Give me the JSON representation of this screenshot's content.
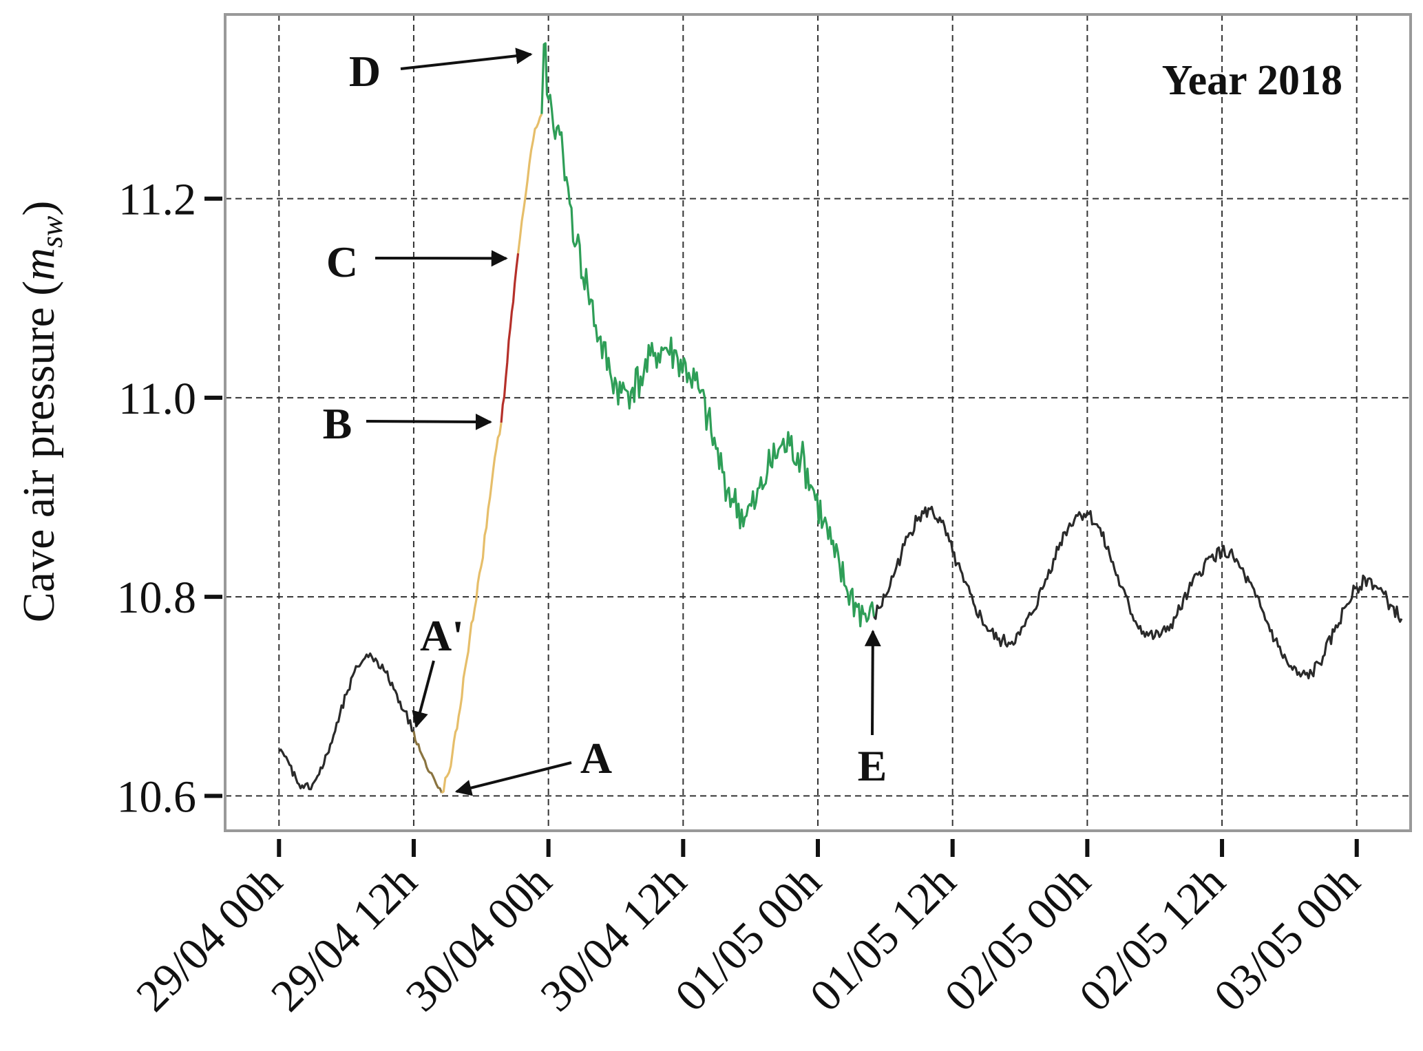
{
  "chart_data": {
    "type": "line",
    "ylabel_main": "Cave air pressure (",
    "ylabel_var": "m",
    "ylabel_sub": "sw",
    "ylabel_close": ")",
    "ylim": [
      10.565,
      11.385
    ],
    "y_ticks": [
      {
        "value": 10.6,
        "label": "10.6"
      },
      {
        "value": 10.8,
        "label": "10.8"
      },
      {
        "value": 11.0,
        "label": "11.0"
      },
      {
        "value": 11.2,
        "label": "11.2"
      }
    ],
    "xlim_hours": [
      -4.8,
      100.8
    ],
    "x_ticks": [
      {
        "hour": 0,
        "label": "29/04 00h"
      },
      {
        "hour": 12,
        "label": "29/04 12h"
      },
      {
        "hour": 24,
        "label": "30/04 00h"
      },
      {
        "hour": 36,
        "label": "30/04 12h"
      },
      {
        "hour": 48,
        "label": "01/05 00h"
      },
      {
        "hour": 60,
        "label": "01/05 12h"
      },
      {
        "hour": 72,
        "label": "02/05 00h"
      },
      {
        "hour": 84,
        "label": "02/05 12h"
      },
      {
        "hour": 96,
        "label": "03/05 00h"
      }
    ],
    "grid": true,
    "year_label": "Year 2018",
    "colors": {
      "before": "#2a2a2a",
      "A_prime_to_A": "#8a7440",
      "rise": "#e6be6a",
      "B_to_C": "#b5302a",
      "after_peak": "#2e9e57",
      "after_E": "#2a2a2a",
      "frame": "#999999",
      "grid": "#333333"
    },
    "series": [
      {
        "segment": "before",
        "color": "#2a2a2a",
        "points": [
          [
            0,
            10.645
          ],
          [
            0.8,
            10.635
          ],
          [
            1.5,
            10.618
          ],
          [
            2.2,
            10.608
          ],
          [
            3,
            10.612
          ],
          [
            4,
            10.632
          ],
          [
            5,
            10.665
          ],
          [
            6,
            10.702
          ],
          [
            7,
            10.73
          ],
          [
            7.8,
            10.742
          ],
          [
            8.6,
            10.738
          ],
          [
            9.5,
            10.724
          ],
          [
            10.5,
            10.702
          ],
          [
            11.2,
            10.685
          ],
          [
            12,
            10.665
          ]
        ]
      },
      {
        "segment": "A_prime_to_A",
        "color": "#8a7440",
        "points": [
          [
            12,
            10.665
          ],
          [
            12.7,
            10.642
          ],
          [
            13.3,
            10.625
          ],
          [
            14,
            10.612
          ],
          [
            14.5,
            10.603
          ]
        ]
      },
      {
        "segment": "rise",
        "color": "#e6be6a",
        "points": [
          [
            14.5,
            10.603
          ],
          [
            15.3,
            10.63
          ],
          [
            16,
            10.68
          ],
          [
            17,
            10.76
          ],
          [
            18,
            10.83
          ],
          [
            18.8,
            10.9
          ],
          [
            19.5,
            10.96
          ],
          [
            19.8,
            10.975
          ]
        ]
      },
      {
        "segment": "B_to_C",
        "color": "#b5302a",
        "points": [
          [
            19.8,
            10.975
          ],
          [
            20.2,
            11.02
          ],
          [
            20.6,
            11.07
          ],
          [
            21,
            11.115
          ],
          [
            21.3,
            11.145
          ]
        ]
      },
      {
        "segment": "rise_to_D",
        "color": "#e6be6a",
        "points": [
          [
            21.3,
            11.145
          ],
          [
            21.8,
            11.19
          ],
          [
            22.3,
            11.235
          ],
          [
            22.8,
            11.27
          ],
          [
            23.4,
            11.285
          ]
        ]
      },
      {
        "segment": "after_peak",
        "color": "#2e9e57",
        "points": [
          [
            23.4,
            11.285
          ],
          [
            23.6,
            11.355
          ],
          [
            24,
            11.3
          ],
          [
            24.6,
            11.26
          ],
          [
            25.3,
            11.245
          ],
          [
            25.9,
            11.195
          ],
          [
            26.5,
            11.155
          ],
          [
            27.5,
            11.11
          ],
          [
            28.5,
            11.06
          ],
          [
            29.5,
            11.025
          ],
          [
            30.5,
            11.005
          ],
          [
            31.5,
            11.01
          ],
          [
            32.5,
            11.025
          ],
          [
            33.5,
            11.045
          ],
          [
            34.5,
            11.05
          ],
          [
            35.5,
            11.04
          ],
          [
            36.5,
            11.025
          ],
          [
            37.5,
            11.005
          ],
          [
            38.5,
            10.965
          ],
          [
            39.5,
            10.925
          ],
          [
            40.5,
            10.895
          ],
          [
            41.5,
            10.88
          ],
          [
            42.5,
            10.895
          ],
          [
            43.5,
            10.925
          ],
          [
            44.5,
            10.948
          ],
          [
            45.5,
            10.952
          ],
          [
            46.5,
            10.94
          ],
          [
            47.5,
            10.91
          ],
          [
            48.5,
            10.875
          ],
          [
            49.5,
            10.84
          ],
          [
            50.5,
            10.81
          ],
          [
            51.5,
            10.79
          ],
          [
            52.5,
            10.778
          ],
          [
            53,
            10.78
          ]
        ]
      },
      {
        "segment": "after_E",
        "color": "#2a2a2a",
        "points": [
          [
            53,
            10.78
          ],
          [
            54,
            10.8
          ],
          [
            55,
            10.83
          ],
          [
            56,
            10.86
          ],
          [
            57,
            10.88
          ],
          [
            58,
            10.888
          ],
          [
            59,
            10.875
          ],
          [
            60,
            10.845
          ],
          [
            61,
            10.815
          ],
          [
            62,
            10.79
          ],
          [
            63,
            10.77
          ],
          [
            64,
            10.757
          ],
          [
            65,
            10.754
          ],
          [
            66,
            10.762
          ],
          [
            67,
            10.782
          ],
          [
            68,
            10.808
          ],
          [
            69,
            10.838
          ],
          [
            70,
            10.865
          ],
          [
            71,
            10.882
          ],
          [
            72,
            10.885
          ],
          [
            73,
            10.87
          ],
          [
            74,
            10.842
          ],
          [
            75,
            10.81
          ],
          [
            76,
            10.782
          ],
          [
            77,
            10.765
          ],
          [
            78,
            10.76
          ],
          [
            79,
            10.765
          ],
          [
            80,
            10.782
          ],
          [
            81,
            10.805
          ],
          [
            82,
            10.825
          ],
          [
            83,
            10.84
          ],
          [
            84,
            10.846
          ],
          [
            85,
            10.84
          ],
          [
            86,
            10.822
          ],
          [
            87,
            10.8
          ],
          [
            88,
            10.775
          ],
          [
            89,
            10.75
          ],
          [
            90,
            10.73
          ],
          [
            91,
            10.72
          ],
          [
            92,
            10.723
          ],
          [
            93,
            10.74
          ],
          [
            94,
            10.765
          ],
          [
            95,
            10.79
          ],
          [
            96,
            10.81
          ],
          [
            97,
            10.818
          ],
          [
            98,
            10.808
          ],
          [
            99,
            10.792
          ],
          [
            100,
            10.778
          ]
        ]
      }
    ],
    "annotations": [
      {
        "label": "D",
        "target_hour": 23.3,
        "target_value": 11.345
      },
      {
        "label": "C",
        "target_hour": 21.1,
        "target_value": 11.14
      },
      {
        "label": "B",
        "target_hour": 19.7,
        "target_value": 10.977
      },
      {
        "label": "A'",
        "target_hour": 12.4,
        "target_value": 10.66
      },
      {
        "label": "A",
        "target_hour": 15.2,
        "target_value": 10.603
      },
      {
        "label": "E",
        "target_hour": 52.9,
        "target_value": 10.775
      }
    ]
  }
}
